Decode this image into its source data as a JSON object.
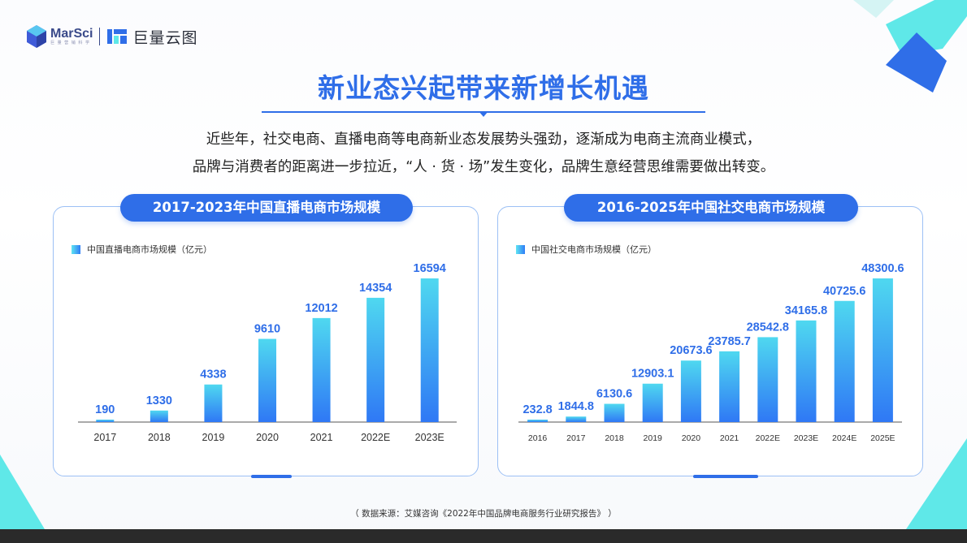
{
  "brand": {
    "logo1_text": "MarSci",
    "logo1_subtext": "巨 量 营 销 科 学",
    "logo2_text": "巨量云图",
    "accent": "#2f6ee8",
    "deco_cyan": "#5fe8e8"
  },
  "title": "新业态兴起带来新增长机遇",
  "intro_lines": [
    "近些年，社交电商、直播电商等电商新业态发展势头强劲，逐渐成为电商主流商业模式，",
    "品牌与消费者的距离进一步拉近，“人 · 货 · 场”发生变化，品牌生意经营思维需要做出转变。"
  ],
  "source": "（ 数据来源：艾媒咨询《2022年中国品牌电商服务行业研究报告》 ）",
  "chart_data": [
    {
      "type": "bar",
      "title": "2017-2023年中国直播电商市场规模",
      "legend": "中国直播电商市场规模（亿元）",
      "legend_position": "top-left",
      "grid": false,
      "categories": [
        "2017",
        "2018",
        "2019",
        "2020",
        "2021",
        "2022E",
        "2023E"
      ],
      "values": [
        190,
        1330,
        4338,
        9610,
        12012,
        14354,
        16594
      ],
      "value_labels": [
        "190",
        "1330",
        "4338",
        "9610",
        "12012",
        "14354",
        "16594"
      ],
      "ylim": [
        0,
        16594
      ]
    },
    {
      "type": "bar",
      "title": "2016-2025年中国社交电商市场规模",
      "legend": "中国社交电商市场规模（亿元）",
      "legend_position": "top-left",
      "grid": false,
      "categories": [
        "2016",
        "2017",
        "2018",
        "2019",
        "2020",
        "2021",
        "2022E",
        "2023E",
        "2024E",
        "2025E"
      ],
      "values": [
        232.8,
        1844.8,
        6130.6,
        12903.1,
        20673.6,
        23785.7,
        28542.8,
        34165.8,
        40725.6,
        48300.6
      ],
      "value_labels": [
        "232.8",
        "1844.8",
        "6130.6",
        "12903.1",
        "20673.6",
        "23785.7",
        "28542.8",
        "34165.8",
        "40725.6",
        "48300.6"
      ],
      "ylim": [
        0,
        48300.6
      ]
    }
  ]
}
